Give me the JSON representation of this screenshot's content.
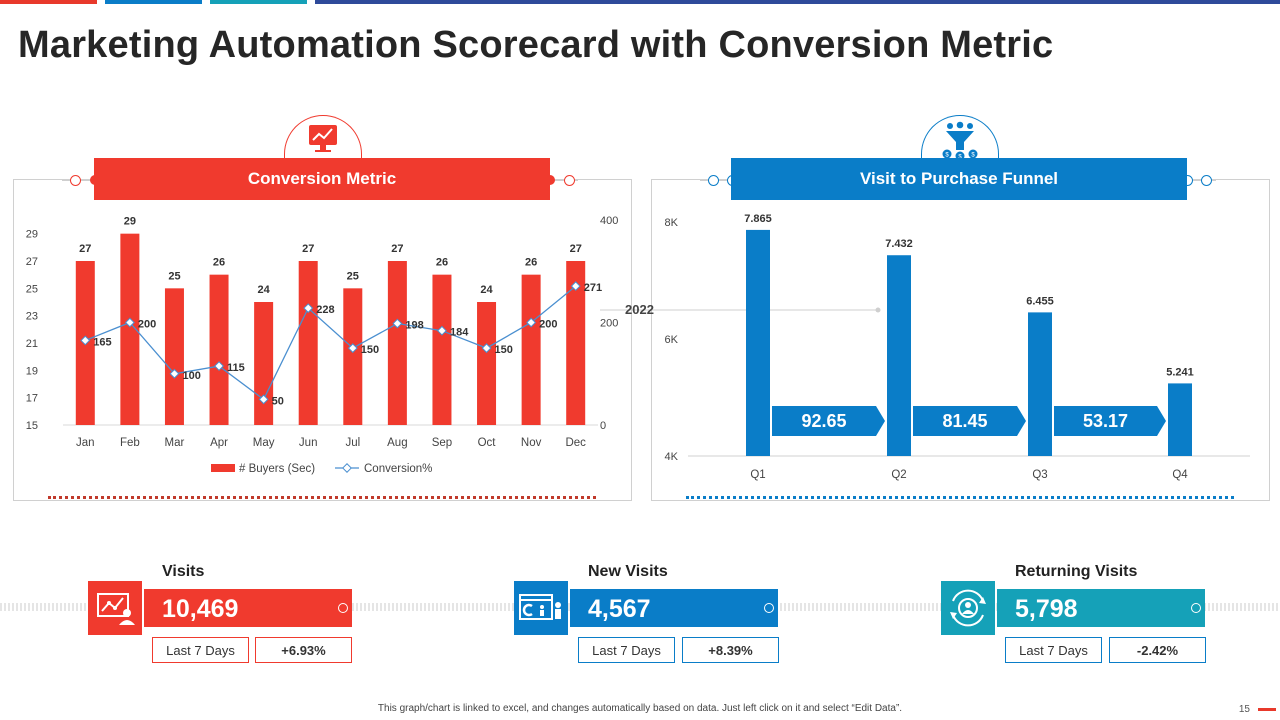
{
  "title": "Marketing Automation Scorecard with Conversion Metric",
  "colors": {
    "red": "#F03A2E",
    "blue": "#0A7DC8",
    "teal": "#15A1B8",
    "gray_line": "#BBBBBB"
  },
  "top_stripes": [
    "#E8392B",
    "#0A7DC8",
    "#15A1B8",
    "#2E4A9A"
  ],
  "left_panel": {
    "header": "Conversion Metric",
    "icon": "monitor-chart-icon"
  },
  "right_panel": {
    "header": "Visit to Purchase Funnel",
    "icon": "funnel-people-icon"
  },
  "chart_data": [
    {
      "type": "bar",
      "title": "Conversion Metric",
      "categories": [
        "Jan",
        "Feb",
        "Mar",
        "Apr",
        "May",
        "Jun",
        "Jul",
        "Aug",
        "Sep",
        "Oct",
        "Nov",
        "Dec"
      ],
      "series": [
        {
          "name": "# Buyers (Sec)",
          "type": "bar",
          "axis": "left",
          "values": [
            27,
            29,
            25,
            26,
            24,
            27,
            25,
            27,
            26,
            24,
            26,
            27
          ]
        },
        {
          "name": "Conversion%",
          "type": "line",
          "axis": "right",
          "values": [
            165,
            200,
            100,
            115,
            50,
            228,
            150,
            198,
            184,
            150,
            200,
            271
          ]
        }
      ],
      "left_ylim": [
        15,
        30
      ],
      "left_ticks": [
        15,
        17,
        19,
        21,
        23,
        25,
        27,
        29
      ],
      "right_ylim": [
        0,
        400
      ],
      "right_ticks": [
        0,
        200,
        400
      ],
      "legend": [
        "# Buyers (Sec)",
        "Conversion%"
      ],
      "legend_position": "bottom"
    },
    {
      "type": "bar",
      "title": "Visit to Purchase Funnel",
      "categories": [
        "Q1",
        "Q2",
        "Q3",
        "Q4"
      ],
      "values": [
        7865,
        7432,
        6455,
        5241
      ],
      "value_labels": [
        "7.865",
        "7.432",
        "6.455",
        "5.241"
      ],
      "ylim": [
        4000,
        8000
      ],
      "y_ticks": [
        {
          "value": 4000,
          "label": "4K"
        },
        {
          "value": 6000,
          "label": "6K"
        },
        {
          "value": 8000,
          "label": "8K"
        }
      ],
      "conversion_arrows": [
        "92.65",
        "81.45",
        "53.17"
      ],
      "reference_label": "2022"
    }
  ],
  "kpis": [
    {
      "label": "Visits",
      "value": "10,469",
      "period": "Last 7 Days",
      "change": "+6.93%",
      "icon": "analytics-user-icon",
      "color": "#F03A2E"
    },
    {
      "label": "New Visits",
      "value": "4,567",
      "period": "Last 7 Days",
      "change": "+8.39%",
      "icon": "browser-users-icon",
      "color": "#0A7DC8"
    },
    {
      "label": "Returning Visits",
      "value": "5,798",
      "period": "Last 7 Days",
      "change": "-2.42%",
      "icon": "returning-user-icon",
      "color": "#15A1B8"
    }
  ],
  "footnote": "This graph/chart is linked to excel, and changes automatically based on data. Just left click on it and select “Edit Data”.",
  "page_number": "15"
}
